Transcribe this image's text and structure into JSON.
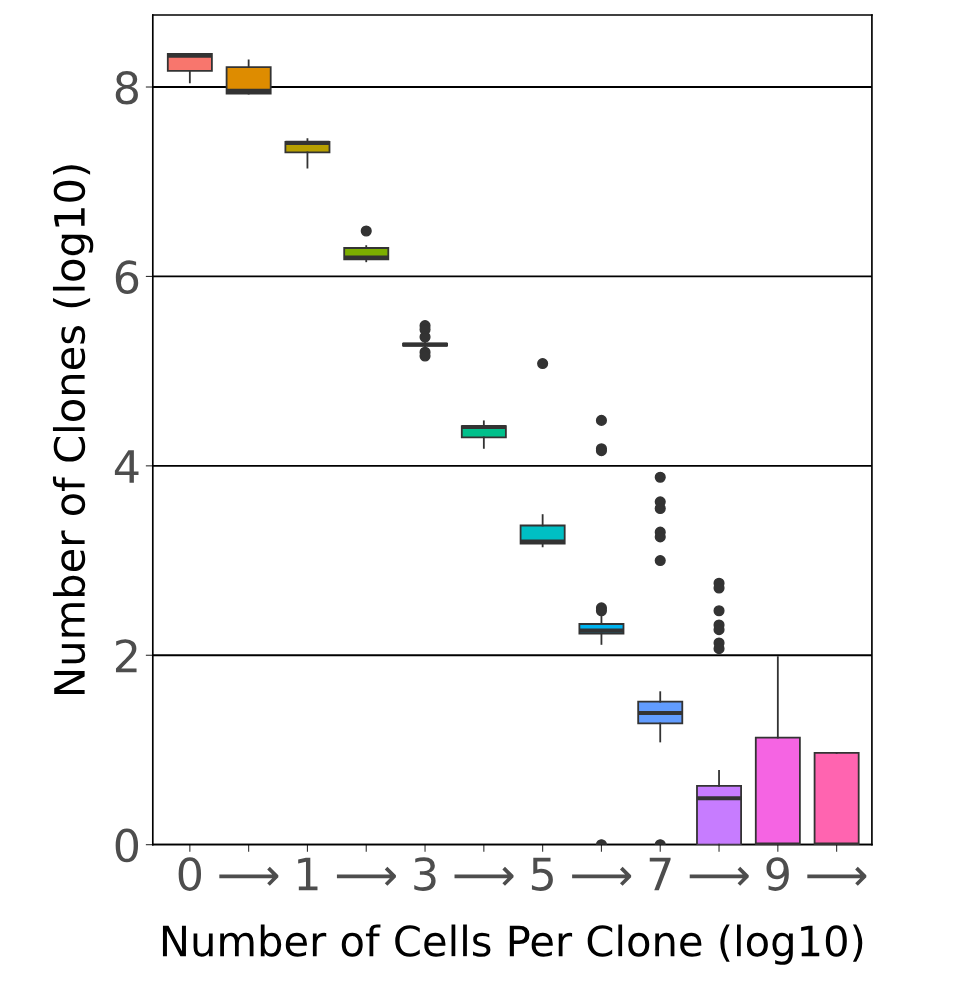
{
  "chart_data": {
    "type": "box",
    "xlabel": "Number of Cells Per Clone (log10)",
    "ylabel": "Number of Clones (log10)",
    "categories": [
      "0",
      "⟶",
      "1",
      "⟶",
      "3",
      "⟶",
      "5",
      "⟶",
      "7",
      "⟶",
      "9",
      "⟶"
    ],
    "colors": [
      "#f8766d",
      "#de8c00",
      "#b79f00",
      "#7cae00",
      "#00ba38",
      "#00c08b",
      "#00bfc4",
      "#00b4f0",
      "#619cff",
      "#c77cff",
      "#f564e3",
      "#ff64b0"
    ],
    "boxes": [
      {
        "low": 8.05,
        "q1": 8.17,
        "median": 8.33,
        "q3": 8.35,
        "high": 8.35
      },
      {
        "low": 7.93,
        "q1": 7.93,
        "median": 7.96,
        "q3": 8.21,
        "high": 8.28
      },
      {
        "low": 7.15,
        "q1": 7.31,
        "median": 7.41,
        "q3": 7.42,
        "high": 7.45
      },
      {
        "low": 6.16,
        "q1": 6.18,
        "median": 6.2,
        "q3": 6.3,
        "high": 6.32,
        "outliers": [
          6.48
        ]
      },
      {
        "low": 5.26,
        "q1": 5.27,
        "median": 5.28,
        "q3": 5.29,
        "high": 5.3,
        "outliers": [
          5.48,
          5.44,
          5.36,
          5.2,
          5.16
        ]
      },
      {
        "low": 4.19,
        "q1": 4.3,
        "median": 4.41,
        "q3": 4.42,
        "high": 4.47
      },
      {
        "low": 3.15,
        "q1": 3.18,
        "median": 3.2,
        "q3": 3.37,
        "high": 3.48,
        "outliers": [
          5.08
        ]
      },
      {
        "low": 2.12,
        "q1": 2.23,
        "median": 2.26,
        "q3": 2.33,
        "high": 2.42,
        "outliers": [
          4.48,
          4.18,
          4.16,
          2.5,
          2.47,
          0
        ]
      },
      {
        "low": 1.09,
        "q1": 1.28,
        "median": 1.39,
        "q3": 1.51,
        "high": 1.61,
        "outliers": [
          3.88,
          3.62,
          3.55,
          3.3,
          3.25,
          3.0,
          0
        ]
      },
      {
        "low": 0,
        "q1": 0,
        "median": 0.49,
        "q3": 0.62,
        "high": 0.78,
        "outliers": [
          2.76,
          2.71,
          2.47,
          2.32,
          2.27,
          2.13,
          2.07
        ]
      },
      {
        "low": 0,
        "q1": 0,
        "median": 0,
        "q3": 1.13,
        "high": 1.98
      },
      {
        "low": 0,
        "q1": 0,
        "median": 0,
        "q3": 0.97,
        "high": 0.97
      }
    ],
    "ylim": [
      0,
      8.76
    ],
    "yticks": [
      0,
      2,
      4,
      6,
      8
    ],
    "grid": "y"
  }
}
